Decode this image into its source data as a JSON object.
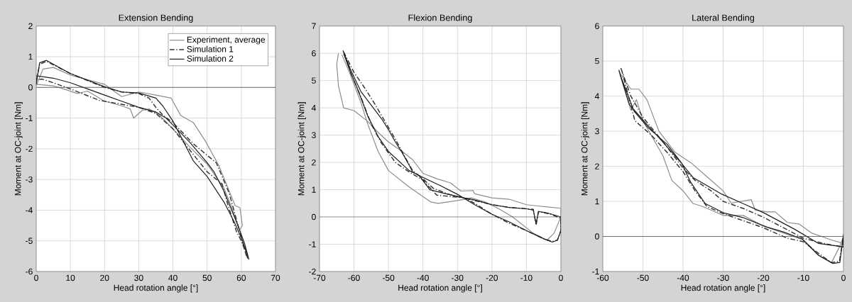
{
  "chart_data": [
    {
      "type": "line",
      "title": "Extension Bending",
      "xlabel": "Head rotation angle [°]",
      "ylabel": "Moment at OC-joint [Nm]",
      "xlim": [
        0,
        70
      ],
      "ylim": [
        -6,
        2
      ],
      "xticks": [
        0,
        10,
        20,
        30,
        40,
        50,
        60,
        70
      ],
      "yticks": [
        -6,
        -5,
        -4,
        -3,
        -2,
        -1,
        0,
        1,
        2
      ],
      "grid": true,
      "legend": "top right",
      "ref_lines": [
        {
          "axis": "y",
          "value": 0,
          "color": "#505050"
        }
      ],
      "series": [
        {
          "name": "Experiment, average",
          "color": "#8c8c8c",
          "line_style": "solid",
          "x": [
            0,
            2,
            5,
            10,
            20,
            25,
            30,
            35,
            39.5,
            42.3,
            46,
            49.6,
            53.4,
            58.2,
            59.6,
            60.3,
            59.5,
            57,
            55,
            50,
            45,
            40,
            36,
            33,
            31,
            28.5,
            27.5,
            25,
            20,
            15,
            12,
            8,
            5,
            0
          ],
          "values": [
            0.05,
            0.6,
            0.65,
            0.4,
            0.1,
            -0.3,
            -0.15,
            -0.25,
            -0.35,
            -0.92,
            -1.15,
            -1.77,
            -2.54,
            -3.85,
            -3.92,
            -4.5,
            -4.65,
            -3.85,
            -3.3,
            -2.5,
            -1.95,
            -1.35,
            -0.9,
            -0.7,
            -0.75,
            -1.0,
            -0.7,
            -0.6,
            -0.45,
            -0.12,
            -0.2,
            -0.05,
            0.05,
            0.1
          ]
        },
        {
          "name": "Simulation 1",
          "color": "#333333",
          "line_style": "dashdot",
          "x": [
            0,
            1,
            3,
            10,
            20,
            25,
            30,
            33,
            35,
            37,
            40,
            46.1,
            52.7,
            56.5,
            61.4,
            62,
            60,
            58.6,
            56,
            54.4,
            50,
            45,
            40,
            35,
            30,
            18.4,
            10,
            5,
            1.8,
            0
          ],
          "values": [
            0.2,
            0.75,
            0.85,
            0.45,
            0,
            -0.15,
            -0.2,
            -0.35,
            -0.65,
            -0.9,
            -1.15,
            -1.85,
            -2.46,
            -3.46,
            -5.46,
            -5.6,
            -5.0,
            -4.7,
            -3.8,
            -3.15,
            -2.75,
            -2.05,
            -1.35,
            -0.85,
            -0.65,
            -0.42,
            -0.05,
            0.15,
            0.27,
            0.25
          ]
        },
        {
          "name": "Simulation 2",
          "color": "#1e1e1e",
          "line_style": "solid",
          "x": [
            0,
            1,
            3,
            10,
            20,
            25,
            30,
            35,
            37,
            40,
            43,
            46,
            50,
            55,
            58,
            60,
            62.2,
            61,
            59,
            55,
            52,
            50,
            45,
            42,
            38,
            35,
            30,
            25,
            20,
            15,
            10,
            5,
            0
          ],
          "values": [
            0.1,
            0.8,
            0.88,
            0.45,
            0.02,
            -0.15,
            -0.18,
            -0.35,
            -0.6,
            -1.1,
            -1.75,
            -2.4,
            -2.9,
            -3.75,
            -4.4,
            -4.9,
            -5.6,
            -5.1,
            -4.5,
            -3.4,
            -2.75,
            -2.45,
            -1.8,
            -1.45,
            -1.0,
            -0.8,
            -0.65,
            -0.45,
            -0.25,
            -0.05,
            0.15,
            0.3,
            0.38
          ]
        }
      ]
    },
    {
      "type": "line",
      "title": "Flexion Bending",
      "xlabel": "Head rotation angle [°]",
      "ylabel": "Moment at OC-joint [Nm]",
      "xlim": [
        -70,
        0
      ],
      "ylim": [
        -2,
        7
      ],
      "xticks": [
        -70,
        -60,
        -50,
        -40,
        -30,
        -20,
        -10,
        0
      ],
      "yticks": [
        -2,
        -1,
        0,
        1,
        2,
        3,
        4,
        5,
        6,
        7
      ],
      "grid": true,
      "ref_lines": [
        {
          "axis": "y",
          "value": 0,
          "color": "#505050"
        }
      ],
      "series": [
        {
          "color": "#8c8c8c",
          "line_style": "solid",
          "x": [
            -64.5,
            -65,
            -64.5,
            -63,
            -60,
            -56,
            -53,
            -50,
            -46,
            -43,
            -40,
            -36,
            -32,
            -29,
            -25.5,
            -25,
            -20,
            -15,
            -10,
            -5,
            0,
            0,
            -2,
            -4,
            -8,
            -14,
            -18,
            -22,
            -26,
            -30,
            -35.6,
            -37.7,
            -44,
            -50,
            -53,
            -56,
            -58,
            -61,
            -63.5
          ],
          "values": [
            6.0,
            5.6,
            4.8,
            4.0,
            3.9,
            3.5,
            3.1,
            2.75,
            2.4,
            2.1,
            1.6,
            1.4,
            1.25,
            0.95,
            0.97,
            0.85,
            0.7,
            0.65,
            0.45,
            0.38,
            0.32,
            0.0,
            -0.6,
            -0.85,
            -0.6,
            0.0,
            0.3,
            0.55,
            0.7,
            0.6,
            0.5,
            0.55,
            1.1,
            1.7,
            2.4,
            3.4,
            4.2,
            5.2,
            5.95
          ]
        },
        {
          "color": "#333333",
          "line_style": "dashdot",
          "x": [
            -63,
            -60,
            -57,
            -54,
            -51,
            -48,
            -45,
            -43,
            -40,
            -37,
            -33,
            -30,
            -25,
            -20,
            -15,
            -10,
            -8,
            -7.2,
            -6.5,
            -3,
            0,
            0,
            -1,
            -2.5,
            -5,
            -10,
            -15,
            -20,
            -25,
            -28,
            -32,
            -36,
            -40,
            -44,
            -48,
            -52,
            -55,
            -58,
            -61,
            -62.8
          ],
          "values": [
            6.05,
            5.3,
            4.75,
            4.15,
            3.5,
            2.85,
            2.15,
            1.7,
            1.4,
            1.05,
            0.85,
            0.75,
            0.6,
            0.45,
            0.35,
            0.3,
            0.28,
            -0.3,
            0.2,
            0.1,
            -0.05,
            -0.5,
            -0.85,
            -0.9,
            -0.8,
            -0.5,
            -0.23,
            0.1,
            0.5,
            0.7,
            0.75,
            0.8,
            1.35,
            1.65,
            2.0,
            2.7,
            3.4,
            4.4,
            5.3,
            5.95
          ]
        },
        {
          "color": "#1e1e1e",
          "line_style": "solid",
          "x": [
            -63.2,
            -61,
            -58,
            -55,
            -52,
            -50,
            -48,
            -46,
            -44,
            -43,
            -41,
            -38,
            -35,
            -30,
            -25,
            -20,
            -15,
            -10,
            -8,
            -7.2,
            -6.5,
            -4,
            0,
            0,
            -1,
            -2.5,
            -5,
            -10,
            -15,
            -20,
            -25,
            -30,
            -35,
            -40,
            -44,
            -47,
            -50,
            -53,
            -56,
            -59,
            -61,
            -63
          ],
          "values": [
            6.1,
            5.4,
            4.6,
            4.1,
            3.6,
            3.2,
            2.75,
            2.35,
            1.9,
            1.65,
            1.5,
            1.0,
            0.9,
            0.75,
            0.62,
            0.45,
            0.35,
            0.3,
            0.25,
            -0.25,
            0.2,
            0.15,
            0.0,
            -0.5,
            -0.85,
            -0.92,
            -0.8,
            -0.5,
            -0.18,
            0.1,
            0.45,
            0.83,
            1.15,
            1.45,
            1.7,
            2.05,
            2.4,
            2.95,
            3.7,
            4.7,
            5.3,
            6.0
          ]
        }
      ]
    },
    {
      "type": "line",
      "title": "Lateral Bending",
      "xlabel": "Head rotation angle [°]",
      "ylabel": "Moment at OC-joint [Nm]",
      "xlim": [
        -60,
        0
      ],
      "ylim": [
        -1,
        6
      ],
      "xticks": [
        -60,
        -50,
        -40,
        -30,
        -20,
        -10,
        0
      ],
      "yticks": [
        -1,
        0,
        1,
        2,
        3,
        4,
        5,
        6
      ],
      "grid": true,
      "ref_lines": [
        {
          "axis": "y",
          "value": 0,
          "color": "#505050"
        }
      ],
      "series": [
        {
          "color": "#8c8c8c",
          "line_style": "solid",
          "x": [
            -56,
            -53,
            -51,
            -49,
            -46,
            -42,
            -38,
            -35,
            -30,
            -28,
            -23,
            -22,
            -19,
            -17,
            -14,
            -11,
            -8,
            -3,
            0,
            0,
            -1,
            -3,
            -6,
            -10,
            -15,
            -20,
            -25,
            -30,
            -35,
            -37.5,
            -40,
            -42.8,
            -45,
            -48,
            -50,
            -51.6,
            -53,
            -55.7
          ],
          "values": [
            4.7,
            4.2,
            4.2,
            3.9,
            3.0,
            2.4,
            2.1,
            1.8,
            1.3,
            0.95,
            1.05,
            0.75,
            0.7,
            0.7,
            0.4,
            0.35,
            0.1,
            -0.1,
            -0.2,
            0.0,
            -0.3,
            -0.75,
            -0.55,
            -0.1,
            0.1,
            0.3,
            0.6,
            0.6,
            0.85,
            0.94,
            1.3,
            1.6,
            2.3,
            2.9,
            3.3,
            3.9,
            3.6,
            4.6
          ]
        },
        {
          "color": "#333333",
          "line_style": "dashdot",
          "x": [
            -55.5,
            -53,
            -50,
            -45,
            -40,
            -37,
            -33,
            -30,
            -25,
            -20,
            -15,
            -10,
            -5,
            0,
            0,
            -1,
            -3,
            -6,
            -10,
            -14,
            -20,
            -25,
            -30,
            -34,
            -37,
            -40,
            -44,
            -48,
            -52,
            -55.2
          ],
          "values": [
            4.8,
            4.0,
            3.4,
            2.7,
            1.95,
            1.6,
            1.3,
            1.0,
            0.8,
            0.55,
            0.25,
            -0.05,
            -0.2,
            -0.3,
            0.0,
            -0.7,
            -0.75,
            -0.5,
            -0.15,
            -0.05,
            0.25,
            0.45,
            0.65,
            0.85,
            1.3,
            1.85,
            2.4,
            2.9,
            3.3,
            4.7
          ]
        },
        {
          "color": "#1e1e1e",
          "line_style": "solid",
          "x": [
            -56,
            -53.4,
            -49.3,
            -45.1,
            -40.4,
            -37.5,
            -30.4,
            -25.1,
            -19.8,
            -12.1,
            -6.2,
            0,
            0,
            -0.9,
            -2.6,
            -6.2,
            -10.3,
            -15,
            -19.2,
            -25.1,
            -29.8,
            -34.5,
            -38.1,
            -40.4,
            -44,
            -48.7,
            -52.2,
            -55.8
          ],
          "values": [
            4.75,
            3.77,
            3.23,
            2.7,
            2.09,
            1.68,
            1.21,
            0.94,
            0.67,
            0.2,
            -0.2,
            -0.3,
            0.05,
            -0.74,
            -0.77,
            -0.54,
            -0.07,
            0.13,
            0.27,
            0.54,
            0.67,
            0.94,
            1.55,
            2.1,
            2.63,
            3.1,
            3.57,
            4.65
          ]
        }
      ]
    }
  ]
}
